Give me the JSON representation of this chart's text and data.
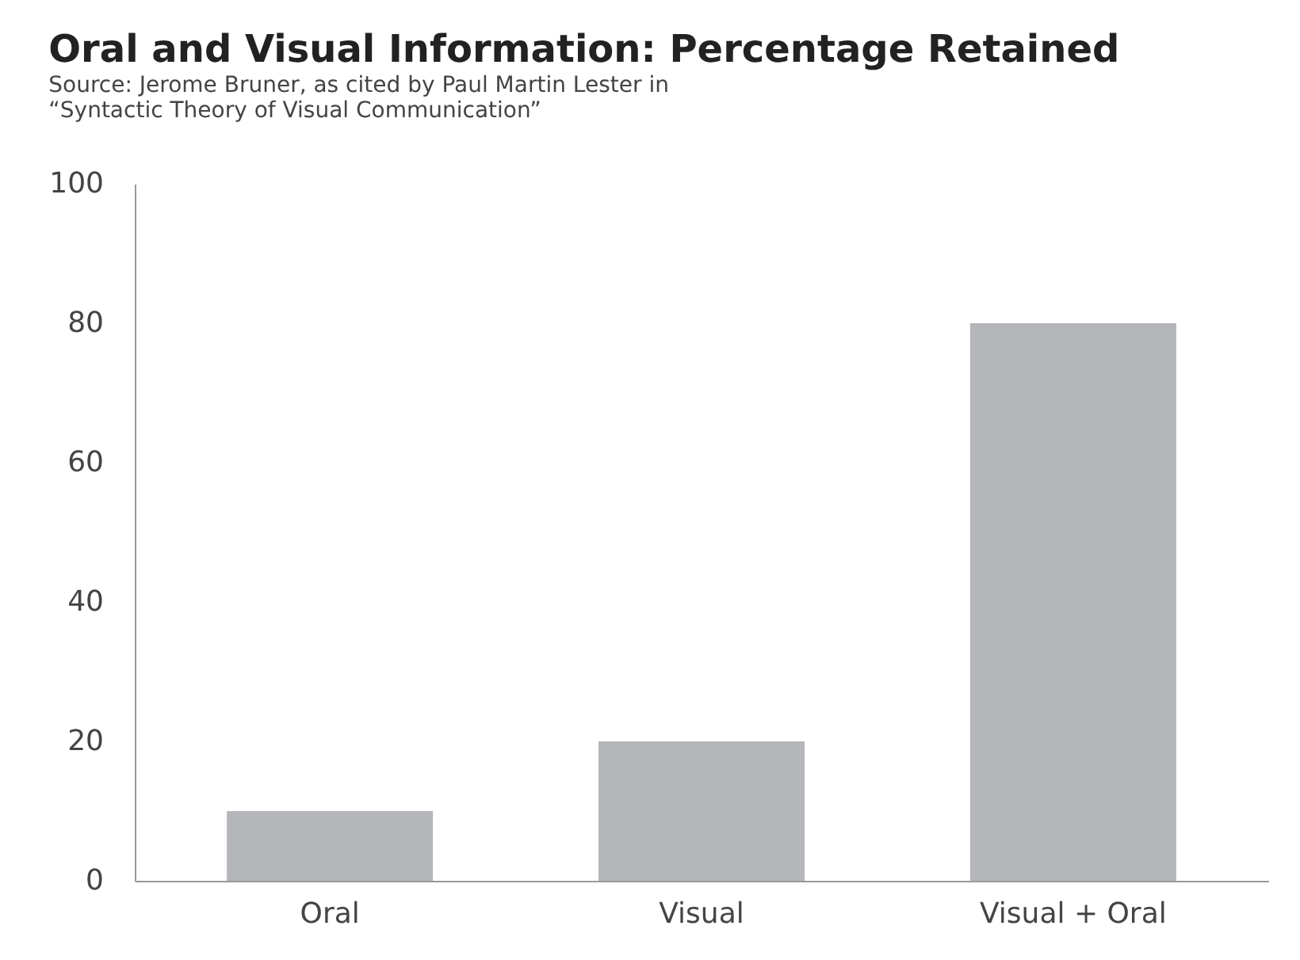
{
  "chart_data": {
    "type": "bar",
    "title": "Oral and Visual Information: Percentage Retained",
    "categories": [
      "Oral",
      "Visual",
      "Visual + Oral"
    ],
    "values": [
      10,
      20,
      80
    ],
    "color": "#b4b6b9",
    "ylim": [
      0,
      100
    ],
    "yticks": [
      0,
      20,
      40,
      60,
      80,
      100
    ],
    "grid": false,
    "annotations": [
      "Source: Jerome Bruner, as cited by Paul Martin Lester in",
      "“Syntactic Theory of Visual Communication”"
    ]
  }
}
